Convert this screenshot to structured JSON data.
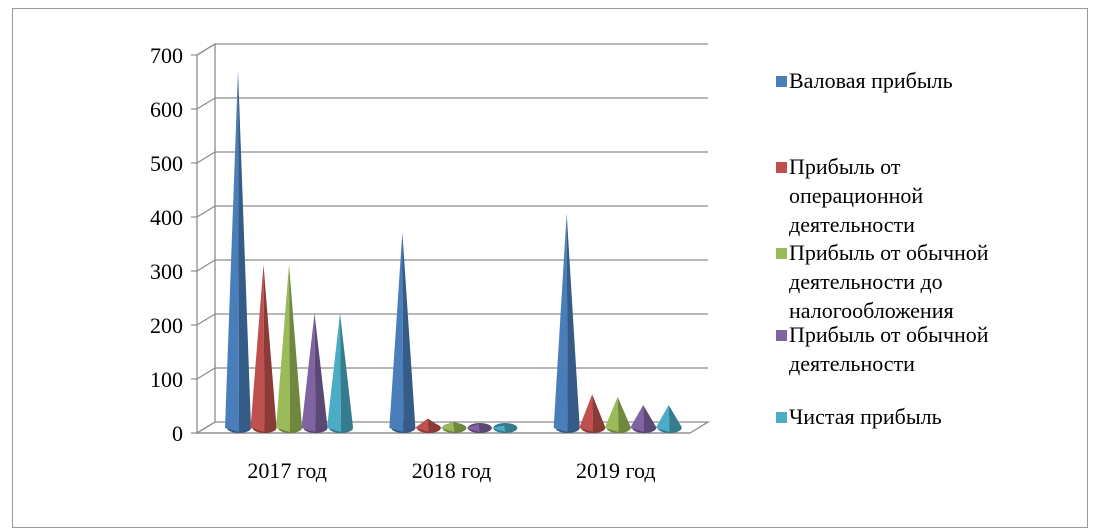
{
  "chart_data": {
    "type": "bar",
    "style": "3d-cone",
    "categories": [
      "2017 год",
      "2018 год",
      "2019 год"
    ],
    "series": [
      {
        "name": "Валовая прибыль",
        "color": "#4A7EBB",
        "values": [
          670,
          370,
          405
        ]
      },
      {
        "name": "Прибыль  от\nоперационной\nдеятельности",
        "color": "#C0504D",
        "values": [
          310,
          25,
          70
        ]
      },
      {
        "name": "Прибыль  от обычной\nдеятельности до\nналогообложения",
        "color": "#9BBB59",
        "values": [
          310,
          20,
          65
        ]
      },
      {
        "name": "Прибыль  от обычной\nдеятельности",
        "color": "#8064A2",
        "values": [
          220,
          15,
          50
        ]
      },
      {
        "name": "Чистая прибыль",
        "color": "#4BACC6",
        "values": [
          220,
          12,
          50
        ]
      }
    ],
    "ylim": [
      0,
      700
    ],
    "yticks": [
      "0",
      "100",
      "200",
      "300",
      "400",
      "500",
      "600",
      "700"
    ],
    "grid": true,
    "legend_position": "right"
  }
}
